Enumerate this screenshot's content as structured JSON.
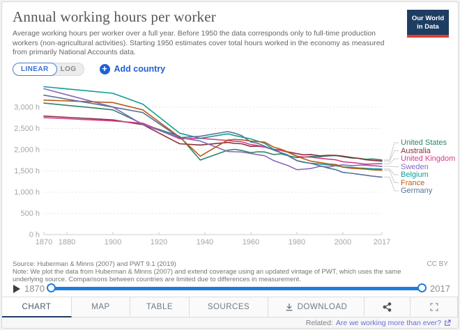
{
  "header": {
    "title": "Annual working hours per worker",
    "subtitle": "Average working hours per worker over a full year. Before 1950 the data corresponds only to full-time production workers (non-agricultural activities). Starting 1950 estimates cover total hours worked in the economy as measured from primarily National Accounts data.",
    "logo": {
      "line1": "Our World",
      "line2": "in Data",
      "bg_color": "#1d3d63",
      "stripe_color": "#e03e2f"
    }
  },
  "controls": {
    "linear_label": "LINEAR",
    "log_label": "LOG",
    "add_country_label": "Add country",
    "accent_color": "#2160d8"
  },
  "chart_data": {
    "type": "line",
    "title": "Annual working hours per worker",
    "xlabel": "",
    "ylabel": "",
    "xlim": [
      1870,
      2017
    ],
    "ylim": [
      0,
      3590
    ],
    "x_ticks": [
      1870,
      1880,
      1900,
      1920,
      1940,
      1960,
      1980,
      2000,
      2017
    ],
    "y_ticks": [
      0,
      500,
      1000,
      1500,
      2000,
      2500,
      3000
    ],
    "y_tick_suffix": " h",
    "grid": true,
    "legend_position": "right",
    "series": [
      {
        "name": "United States",
        "color": "#2C8465",
        "points": [
          [
            1870,
            3096
          ],
          [
            1880,
            3045
          ],
          [
            1890,
            2994
          ],
          [
            1900,
            2938
          ],
          [
            1913,
            2605
          ],
          [
            1929,
            2316
          ],
          [
            1938,
            1756
          ],
          [
            1950,
            1989
          ],
          [
            1953,
            2008
          ],
          [
            1956,
            1982
          ],
          [
            1960,
            1930
          ],
          [
            1963,
            1951
          ],
          [
            1966,
            1946
          ],
          [
            1970,
            1886
          ],
          [
            1973,
            1903
          ],
          [
            1976,
            1860
          ],
          [
            1980,
            1815
          ],
          [
            1983,
            1823
          ],
          [
            1986,
            1841
          ],
          [
            1990,
            1834
          ],
          [
            1994,
            1855
          ],
          [
            1997,
            1862
          ],
          [
            2000,
            1834
          ],
          [
            2004,
            1802
          ],
          [
            2007,
            1798
          ],
          [
            2010,
            1773
          ],
          [
            2013,
            1782
          ],
          [
            2017,
            1757
          ]
        ]
      },
      {
        "name": "Australia",
        "color": "#883039",
        "points": [
          [
            1870,
            2792
          ],
          [
            1880,
            2762
          ],
          [
            1890,
            2732
          ],
          [
            1900,
            2702
          ],
          [
            1913,
            2588
          ],
          [
            1929,
            2139
          ],
          [
            1938,
            2110
          ],
          [
            1950,
            2171
          ],
          [
            1953,
            2148
          ],
          [
            1956,
            2140
          ],
          [
            1960,
            2077
          ],
          [
            1963,
            2083
          ],
          [
            1966,
            2062
          ],
          [
            1970,
            2008
          ],
          [
            1973,
            1988
          ],
          [
            1976,
            1950
          ],
          [
            1980,
            1907
          ],
          [
            1983,
            1878
          ],
          [
            1986,
            1887
          ],
          [
            1990,
            1856
          ],
          [
            1994,
            1869
          ],
          [
            1997,
            1866
          ],
          [
            2000,
            1847
          ],
          [
            2004,
            1814
          ],
          [
            2007,
            1793
          ],
          [
            2010,
            1762
          ],
          [
            2013,
            1747
          ],
          [
            2017,
            1731
          ]
        ]
      },
      {
        "name": "United Kingdom",
        "color": "#D73C8C",
        "points": [
          [
            1870,
            2755
          ],
          [
            1880,
            2729
          ],
          [
            1890,
            2703
          ],
          [
            1900,
            2677
          ],
          [
            1913,
            2624
          ],
          [
            1929,
            2257
          ],
          [
            1938,
            2267
          ],
          [
            1950,
            2217
          ],
          [
            1953,
            2198
          ],
          [
            1956,
            2187
          ],
          [
            1960,
            2122
          ],
          [
            1963,
            2099
          ],
          [
            1966,
            2064
          ],
          [
            1970,
            1997
          ],
          [
            1973,
            1982
          ],
          [
            1976,
            1941
          ],
          [
            1980,
            1846
          ],
          [
            1983,
            1829
          ],
          [
            1986,
            1824
          ],
          [
            1990,
            1799
          ],
          [
            1994,
            1776
          ],
          [
            1997,
            1761
          ],
          [
            2000,
            1716
          ],
          [
            2004,
            1697
          ],
          [
            2007,
            1681
          ],
          [
            2010,
            1659
          ],
          [
            2013,
            1666
          ],
          [
            2017,
            1670
          ]
        ]
      },
      {
        "name": "Sweden",
        "color": "#8667BF",
        "points": [
          [
            1870,
            3436
          ],
          [
            1880,
            3292
          ],
          [
            1890,
            3149
          ],
          [
            1900,
            3005
          ],
          [
            1913,
            2588
          ],
          [
            1929,
            2283
          ],
          [
            1938,
            2204
          ],
          [
            1950,
            1958
          ],
          [
            1953,
            1951
          ],
          [
            1956,
            1946
          ],
          [
            1960,
            1910
          ],
          [
            1963,
            1882
          ],
          [
            1966,
            1858
          ],
          [
            1970,
            1741
          ],
          [
            1973,
            1683
          ],
          [
            1976,
            1629
          ],
          [
            1980,
            1529
          ],
          [
            1983,
            1541
          ],
          [
            1986,
            1556
          ],
          [
            1990,
            1609
          ],
          [
            1994,
            1592
          ],
          [
            1997,
            1626
          ],
          [
            2000,
            1642
          ],
          [
            2004,
            1621
          ],
          [
            2007,
            1636
          ],
          [
            2010,
            1636
          ],
          [
            2013,
            1621
          ],
          [
            2017,
            1609
          ]
        ]
      },
      {
        "name": "Belgium",
        "color": "#0F9E94",
        "points": [
          [
            1870,
            3483
          ],
          [
            1880,
            3431
          ],
          [
            1890,
            3380
          ],
          [
            1900,
            3328
          ],
          [
            1913,
            3072
          ],
          [
            1929,
            2389
          ],
          [
            1938,
            2267
          ],
          [
            1950,
            2374
          ],
          [
            1953,
            2333
          ],
          [
            1956,
            2299
          ],
          [
            1960,
            2254
          ],
          [
            1963,
            2201
          ],
          [
            1966,
            2149
          ],
          [
            1970,
            2003
          ],
          [
            1973,
            1932
          ],
          [
            1976,
            1878
          ],
          [
            1980,
            1742
          ],
          [
            1983,
            1701
          ],
          [
            1986,
            1679
          ],
          [
            1990,
            1663
          ],
          [
            1994,
            1641
          ],
          [
            1997,
            1619
          ],
          [
            2000,
            1595
          ],
          [
            2004,
            1581
          ],
          [
            2007,
            1569
          ],
          [
            2010,
            1560
          ],
          [
            2013,
            1551
          ],
          [
            2017,
            1545
          ]
        ]
      },
      {
        "name": "France",
        "color": "#BE5915",
        "points": [
          [
            1870,
            3168
          ],
          [
            1880,
            3149
          ],
          [
            1890,
            3129
          ],
          [
            1900,
            3110
          ],
          [
            1913,
            2938
          ],
          [
            1929,
            2297
          ],
          [
            1938,
            1848
          ],
          [
            1950,
            2230
          ],
          [
            1953,
            2241
          ],
          [
            1956,
            2233
          ],
          [
            1960,
            2201
          ],
          [
            1963,
            2189
          ],
          [
            1966,
            2178
          ],
          [
            1970,
            2059
          ],
          [
            1973,
            2011
          ],
          [
            1976,
            1949
          ],
          [
            1980,
            1851
          ],
          [
            1983,
            1786
          ],
          [
            1986,
            1731
          ],
          [
            1990,
            1699
          ],
          [
            1994,
            1664
          ],
          [
            1997,
            1651
          ],
          [
            2000,
            1589
          ],
          [
            2004,
            1561
          ],
          [
            2007,
            1553
          ],
          [
            2010,
            1541
          ],
          [
            2013,
            1526
          ],
          [
            2017,
            1514
          ]
        ]
      },
      {
        "name": "Germany",
        "color": "#577297",
        "points": [
          [
            1870,
            3284
          ],
          [
            1880,
            3190
          ],
          [
            1890,
            3097
          ],
          [
            1900,
            3003
          ],
          [
            1913,
            2874
          ],
          [
            1929,
            2283
          ],
          [
            1938,
            2316
          ],
          [
            1950,
            2427
          ],
          [
            1953,
            2389
          ],
          [
            1956,
            2331
          ],
          [
            1960,
            2181
          ],
          [
            1963,
            2149
          ],
          [
            1966,
            2082
          ],
          [
            1970,
            1989
          ],
          [
            1973,
            1929
          ],
          [
            1976,
            1861
          ],
          [
            1980,
            1742
          ],
          [
            1983,
            1709
          ],
          [
            1986,
            1678
          ],
          [
            1990,
            1621
          ],
          [
            1994,
            1562
          ],
          [
            1997,
            1529
          ],
          [
            2000,
            1466
          ],
          [
            2004,
            1442
          ],
          [
            2007,
            1422
          ],
          [
            2010,
            1399
          ],
          [
            2013,
            1376
          ],
          [
            2017,
            1354
          ]
        ]
      }
    ]
  },
  "footer": {
    "source": "Source: Huberman & Minns (2007) and PWT 9.1 (2019)",
    "note": "Note: We plot the data from Huberman & Minns (2007) and extend coverage using an updated vintage of PWT, which uses the same underlying source. Comparisons between countries are limited due to differences in measurement.",
    "license": "CC BY"
  },
  "timeline": {
    "start_year": "1870",
    "end_year": "2017",
    "track_color": "#1e7de0"
  },
  "tabs": {
    "chart": "CHART",
    "map": "MAP",
    "table": "TABLE",
    "sources": "SOURCES",
    "download": "DOWNLOAD"
  },
  "related": {
    "prefix": "Related:",
    "link": "Are we working more than ever?"
  }
}
